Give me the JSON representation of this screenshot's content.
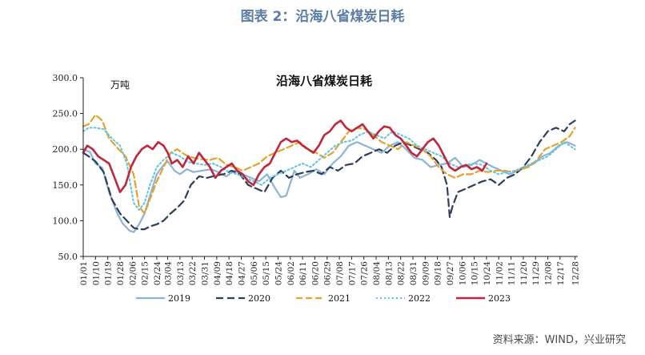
{
  "figure_title": "图表 2：沿海八省煤炭日耗",
  "source": "资料来源：WIND，兴业研究",
  "chart_data": {
    "type": "line",
    "title": "沿海八省煤炭日耗",
    "ylabel": "万吨",
    "ylim": [
      50,
      300
    ],
    "yticks": [
      "300.0",
      "250.0",
      "200.0",
      "150.0",
      "100.0",
      "50.0"
    ],
    "ytick_values": [
      300,
      250,
      200,
      150,
      100,
      50
    ],
    "x_day_range": [
      1,
      364
    ],
    "xticks": [
      "01/01",
      "01/10",
      "01/19",
      "01/28",
      "02/06",
      "02/15",
      "02/24",
      "03/04",
      "03/13",
      "03/22",
      "03/31",
      "04/09",
      "04/18",
      "04/27",
      "05/06",
      "05/15",
      "05/24",
      "06/02",
      "06/11",
      "06/20",
      "06/29",
      "07/08",
      "07/17",
      "07/26",
      "08/04",
      "08/13",
      "08/22",
      "08/31",
      "09/09",
      "09/18",
      "09/27",
      "10/06",
      "10/15",
      "10/24",
      "11/02",
      "11/11",
      "11/20",
      "11/29",
      "12/08",
      "12/17",
      "12/28"
    ],
    "xtick_days": [
      1,
      10,
      19,
      28,
      37,
      46,
      55,
      63,
      72,
      81,
      90,
      99,
      108,
      117,
      126,
      135,
      144,
      153,
      162,
      171,
      180,
      189,
      198,
      207,
      216,
      225,
      234,
      243,
      252,
      261,
      270,
      279,
      288,
      297,
      306,
      315,
      324,
      333,
      342,
      351,
      362
    ],
    "series": [
      {
        "name": "2019",
        "color": "#8fb3d6",
        "dash": "",
        "width": 2.2,
        "x": [
          1,
          6,
          10,
          15,
          20,
          26,
          30,
          35,
          38,
          42,
          46,
          50,
          55,
          60,
          63,
          68,
          72,
          77,
          82,
          88,
          95,
          100,
          106,
          112,
          118,
          124,
          130,
          136,
          142,
          146,
          150,
          156,
          160,
          166,
          172,
          178,
          184,
          190,
          196,
          202,
          208,
          214,
          220,
          226,
          232,
          238,
          244,
          250,
          256,
          262,
          268,
          274,
          280,
          286,
          292,
          297,
          302,
          308,
          314,
          320,
          326,
          332,
          338,
          344,
          350,
          356,
          362
        ],
        "y": [
          200,
          196,
          180,
          174,
          140,
          110,
          96,
          86,
          84,
          95,
          110,
          135,
          165,
          178,
          183,
          170,
          165,
          172,
          168,
          170,
          172,
          168,
          162,
          170,
          165,
          160,
          155,
          165,
          145,
          133,
          135,
          170,
          160,
          165,
          172,
          165,
          180,
          190,
          205,
          210,
          205,
          200,
          195,
          205,
          210,
          200,
          188,
          185,
          175,
          178,
          180,
          188,
          175,
          178,
          185,
          180,
          175,
          170,
          165,
          170,
          175,
          180,
          190,
          195,
          205,
          210,
          205
        ]
      },
      {
        "name": "2020",
        "color": "#2c3e5c",
        "dash": "9,5",
        "width": 2.2,
        "x": [
          1,
          5,
          10,
          16,
          22,
          28,
          33,
          38,
          42,
          46,
          50,
          55,
          60,
          65,
          70,
          75,
          80,
          86,
          92,
          98,
          104,
          110,
          116,
          122,
          128,
          134,
          140,
          146,
          152,
          158,
          164,
          170,
          176,
          182,
          188,
          194,
          200,
          206,
          212,
          218,
          224,
          230,
          236,
          242,
          248,
          254,
          260,
          264,
          268,
          270,
          272,
          276,
          282,
          288,
          294,
          300,
          306,
          312,
          318,
          324,
          330,
          336,
          342,
          348,
          354,
          358,
          362
        ],
        "y": [
          195,
          190,
          183,
          168,
          130,
          110,
          100,
          90,
          88,
          88,
          92,
          95,
          100,
          110,
          118,
          128,
          150,
          162,
          160,
          163,
          165,
          170,
          165,
          150,
          145,
          140,
          160,
          170,
          160,
          165,
          168,
          170,
          165,
          175,
          170,
          178,
          180,
          190,
          195,
          200,
          195,
          205,
          210,
          205,
          200,
          195,
          185,
          175,
          150,
          105,
          120,
          140,
          145,
          150,
          155,
          158,
          150,
          160,
          165,
          175,
          190,
          210,
          225,
          230,
          225,
          235,
          240
        ]
      },
      {
        "name": "2021",
        "color": "#e4a22e",
        "dash": "8,4",
        "width": 2.2,
        "x": [
          1,
          5,
          10,
          15,
          20,
          26,
          32,
          38,
          42,
          46,
          50,
          55,
          60,
          65,
          70,
          76,
          82,
          88,
          94,
          100,
          106,
          112,
          118,
          124,
          130,
          136,
          142,
          148,
          154,
          160,
          166,
          172,
          178,
          184,
          190,
          196,
          202,
          208,
          214,
          220,
          226,
          232,
          238,
          244,
          250,
          256,
          262,
          268,
          274,
          280,
          286,
          292,
          298,
          304,
          310,
          316,
          322,
          328,
          334,
          340,
          346,
          352,
          358,
          362
        ],
        "y": [
          232,
          235,
          248,
          240,
          215,
          202,
          190,
          165,
          120,
          110,
          130,
          155,
          175,
          195,
          200,
          192,
          188,
          186,
          185,
          188,
          178,
          175,
          170,
          175,
          180,
          190,
          195,
          200,
          205,
          210,
          200,
          195,
          188,
          195,
          210,
          225,
          230,
          228,
          220,
          210,
          205,
          200,
          210,
          205,
          200,
          190,
          175,
          165,
          160,
          165,
          165,
          170,
          168,
          170,
          170,
          168,
          172,
          175,
          185,
          200,
          205,
          210,
          218,
          230
        ]
      },
      {
        "name": "2022",
        "color": "#5fc4dd",
        "dash": "2,3",
        "width": 2.0,
        "x": [
          1,
          5,
          10,
          16,
          22,
          28,
          33,
          38,
          42,
          46,
          50,
          55,
          60,
          66,
          72,
          78,
          84,
          90,
          96,
          102,
          108,
          114,
          120,
          126,
          132,
          138,
          144,
          150,
          156,
          162,
          168,
          174,
          180,
          186,
          192,
          198,
          204,
          210,
          216,
          222,
          228,
          234,
          240,
          246,
          252,
          258,
          264,
          270,
          276,
          282,
          288,
          294,
          300,
          306,
          312,
          318,
          324,
          330,
          336,
          342,
          348,
          354,
          358,
          362
        ],
        "y": [
          225,
          230,
          230,
          228,
          215,
          205,
          180,
          125,
          115,
          125,
          150,
          175,
          185,
          195,
          190,
          182,
          180,
          178,
          180,
          175,
          168,
          165,
          160,
          155,
          150,
          160,
          165,
          170,
          175,
          180,
          175,
          185,
          195,
          205,
          210,
          212,
          220,
          225,
          220,
          215,
          225,
          220,
          215,
          205,
          200,
          195,
          190,
          180,
          175,
          178,
          180,
          178,
          170,
          165,
          168,
          170,
          175,
          180,
          185,
          190,
          200,
          210,
          205,
          200
        ]
      },
      {
        "name": "2023",
        "color": "#c0263c",
        "dash": "",
        "width": 2.6,
        "x": [
          1,
          4,
          8,
          12,
          16,
          20,
          24,
          28,
          32,
          36,
          40,
          44,
          48,
          52,
          56,
          60,
          63,
          66,
          70,
          74,
          78,
          82,
          86,
          90,
          94,
          98,
          102,
          106,
          110,
          114,
          118,
          122,
          126,
          130,
          134,
          138,
          142,
          146,
          150,
          154,
          158,
          162,
          166,
          170,
          174,
          178,
          182,
          186,
          190,
          194,
          198,
          202,
          206,
          210,
          214,
          218,
          222,
          226,
          230,
          234,
          238,
          242,
          246,
          250,
          254,
          258,
          262,
          266,
          270,
          274,
          278,
          282,
          286,
          290,
          294,
          297
        ],
        "y": [
          195,
          205,
          200,
          190,
          185,
          180,
          160,
          140,
          150,
          175,
          190,
          200,
          205,
          200,
          210,
          205,
          195,
          180,
          185,
          175,
          190,
          180,
          195,
          185,
          175,
          160,
          170,
          175,
          180,
          170,
          165,
          155,
          150,
          165,
          175,
          180,
          195,
          210,
          215,
          210,
          212,
          205,
          200,
          195,
          205,
          220,
          225,
          235,
          240,
          230,
          225,
          230,
          235,
          225,
          215,
          225,
          232,
          230,
          220,
          215,
          205,
          195,
          190,
          200,
          210,
          215,
          205,
          190,
          175,
          170,
          175,
          178,
          172,
          175,
          170,
          180
        ]
      }
    ]
  }
}
